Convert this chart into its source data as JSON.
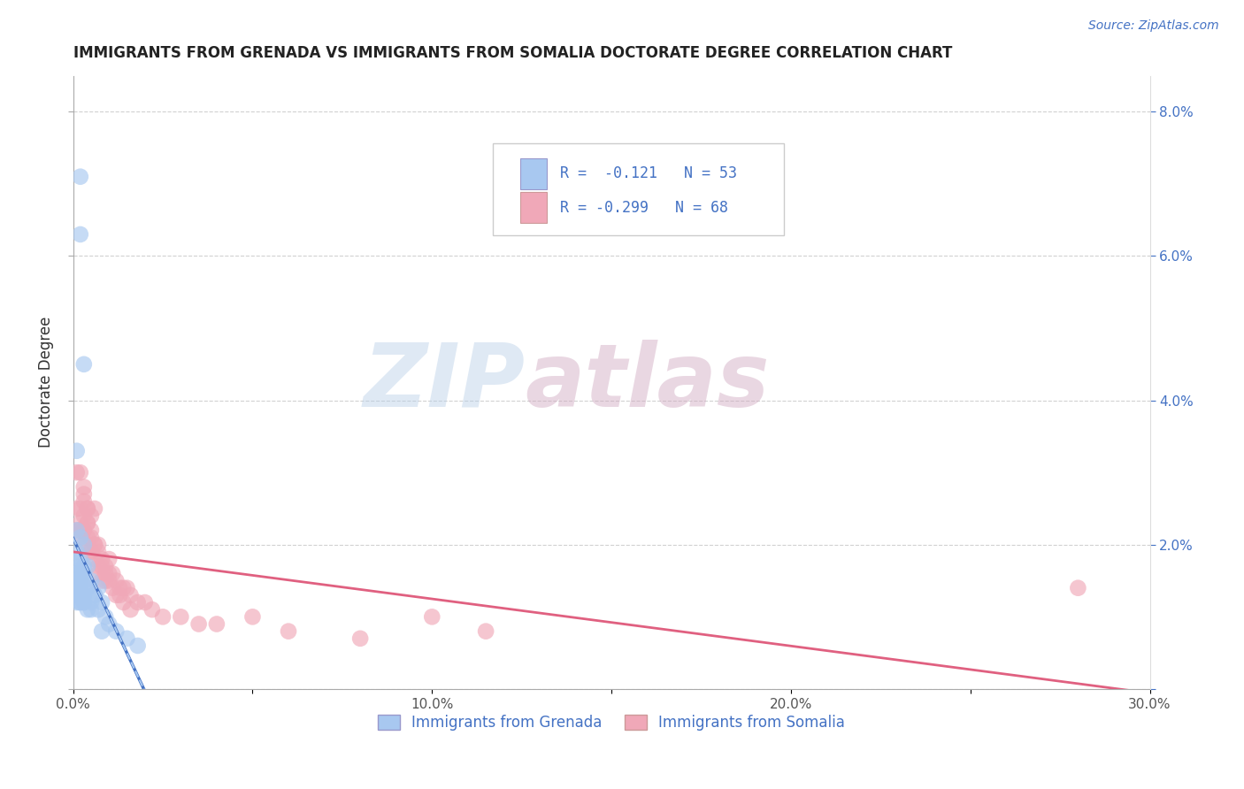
{
  "title": "IMMIGRANTS FROM GRENADA VS IMMIGRANTS FROM SOMALIA DOCTORATE DEGREE CORRELATION CHART",
  "source": "Source: ZipAtlas.com",
  "ylabel": "Doctorate Degree",
  "xlim": [
    0.0,
    0.3
  ],
  "ylim": [
    0.0,
    0.085
  ],
  "xticks": [
    0.0,
    0.05,
    0.1,
    0.15,
    0.2,
    0.25,
    0.3
  ],
  "yticks": [
    0.0,
    0.02,
    0.04,
    0.06,
    0.08
  ],
  "ytick_labels_left": [
    "",
    "",
    "",
    "",
    ""
  ],
  "ytick_labels_right": [
    "",
    "2.0%",
    "4.0%",
    "6.0%",
    "8.0%"
  ],
  "xtick_labels": [
    "0.0%",
    "",
    "10.0%",
    "",
    "20.0%",
    "",
    "30.0%"
  ],
  "color_grenada": "#a8c8f0",
  "color_somalia": "#f0a8b8",
  "line_color_grenada": "#4472c4",
  "line_color_somalia": "#e06080",
  "line_color_grenada_dashed": "#a8c8f0",
  "watermark_zip": "ZIP",
  "watermark_atlas": "atlas",
  "legend_label_grenada": "Immigrants from Grenada",
  "legend_label_somalia": "Immigrants from Somalia",
  "grenada_x": [
    0.002,
    0.002,
    0.003,
    0.001,
    0.001,
    0.002,
    0.003,
    0.001,
    0.002,
    0.001,
    0.002,
    0.003,
    0.001,
    0.002,
    0.001,
    0.002,
    0.001,
    0.003,
    0.002,
    0.001,
    0.002,
    0.001,
    0.003,
    0.002,
    0.001,
    0.002,
    0.003,
    0.001,
    0.002,
    0.003,
    0.004,
    0.003,
    0.002,
    0.004,
    0.003,
    0.005,
    0.004,
    0.003,
    0.002,
    0.004,
    0.006,
    0.005,
    0.007,
    0.006,
    0.005,
    0.008,
    0.007,
    0.009,
    0.01,
    0.008,
    0.012,
    0.015,
    0.018
  ],
  "grenada_y": [
    0.071,
    0.063,
    0.045,
    0.033,
    0.022,
    0.021,
    0.02,
    0.019,
    0.018,
    0.018,
    0.017,
    0.017,
    0.016,
    0.016,
    0.016,
    0.015,
    0.015,
    0.015,
    0.015,
    0.014,
    0.014,
    0.014,
    0.013,
    0.013,
    0.013,
    0.013,
    0.012,
    0.012,
    0.012,
    0.012,
    0.017,
    0.016,
    0.015,
    0.014,
    0.013,
    0.015,
    0.014,
    0.013,
    0.012,
    0.011,
    0.013,
    0.012,
    0.014,
    0.013,
    0.011,
    0.012,
    0.011,
    0.01,
    0.009,
    0.008,
    0.008,
    0.007,
    0.006
  ],
  "somalia_x": [
    0.001,
    0.001,
    0.002,
    0.002,
    0.001,
    0.003,
    0.002,
    0.003,
    0.002,
    0.003,
    0.004,
    0.003,
    0.004,
    0.002,
    0.003,
    0.004,
    0.002,
    0.003,
    0.005,
    0.004,
    0.003,
    0.005,
    0.004,
    0.006,
    0.005,
    0.004,
    0.006,
    0.005,
    0.007,
    0.006,
    0.005,
    0.007,
    0.006,
    0.008,
    0.007,
    0.008,
    0.007,
    0.009,
    0.008,
    0.01,
    0.009,
    0.01,
    0.009,
    0.011,
    0.01,
    0.012,
    0.011,
    0.013,
    0.012,
    0.014,
    0.013,
    0.015,
    0.014,
    0.016,
    0.018,
    0.02,
    0.016,
    0.022,
    0.025,
    0.03,
    0.035,
    0.04,
    0.05,
    0.06,
    0.08,
    0.1,
    0.115,
    0.28
  ],
  "somalia_y": [
    0.03,
    0.025,
    0.03,
    0.025,
    0.022,
    0.028,
    0.023,
    0.027,
    0.022,
    0.026,
    0.025,
    0.024,
    0.023,
    0.022,
    0.022,
    0.025,
    0.021,
    0.02,
    0.024,
    0.023,
    0.022,
    0.022,
    0.021,
    0.025,
    0.021,
    0.02,
    0.02,
    0.019,
    0.02,
    0.02,
    0.019,
    0.019,
    0.018,
    0.018,
    0.017,
    0.017,
    0.016,
    0.016,
    0.015,
    0.018,
    0.017,
    0.016,
    0.015,
    0.016,
    0.015,
    0.015,
    0.014,
    0.014,
    0.013,
    0.014,
    0.013,
    0.014,
    0.012,
    0.013,
    0.012,
    0.012,
    0.011,
    0.011,
    0.01,
    0.01,
    0.009,
    0.009,
    0.01,
    0.008,
    0.007,
    0.01,
    0.008,
    0.014
  ]
}
